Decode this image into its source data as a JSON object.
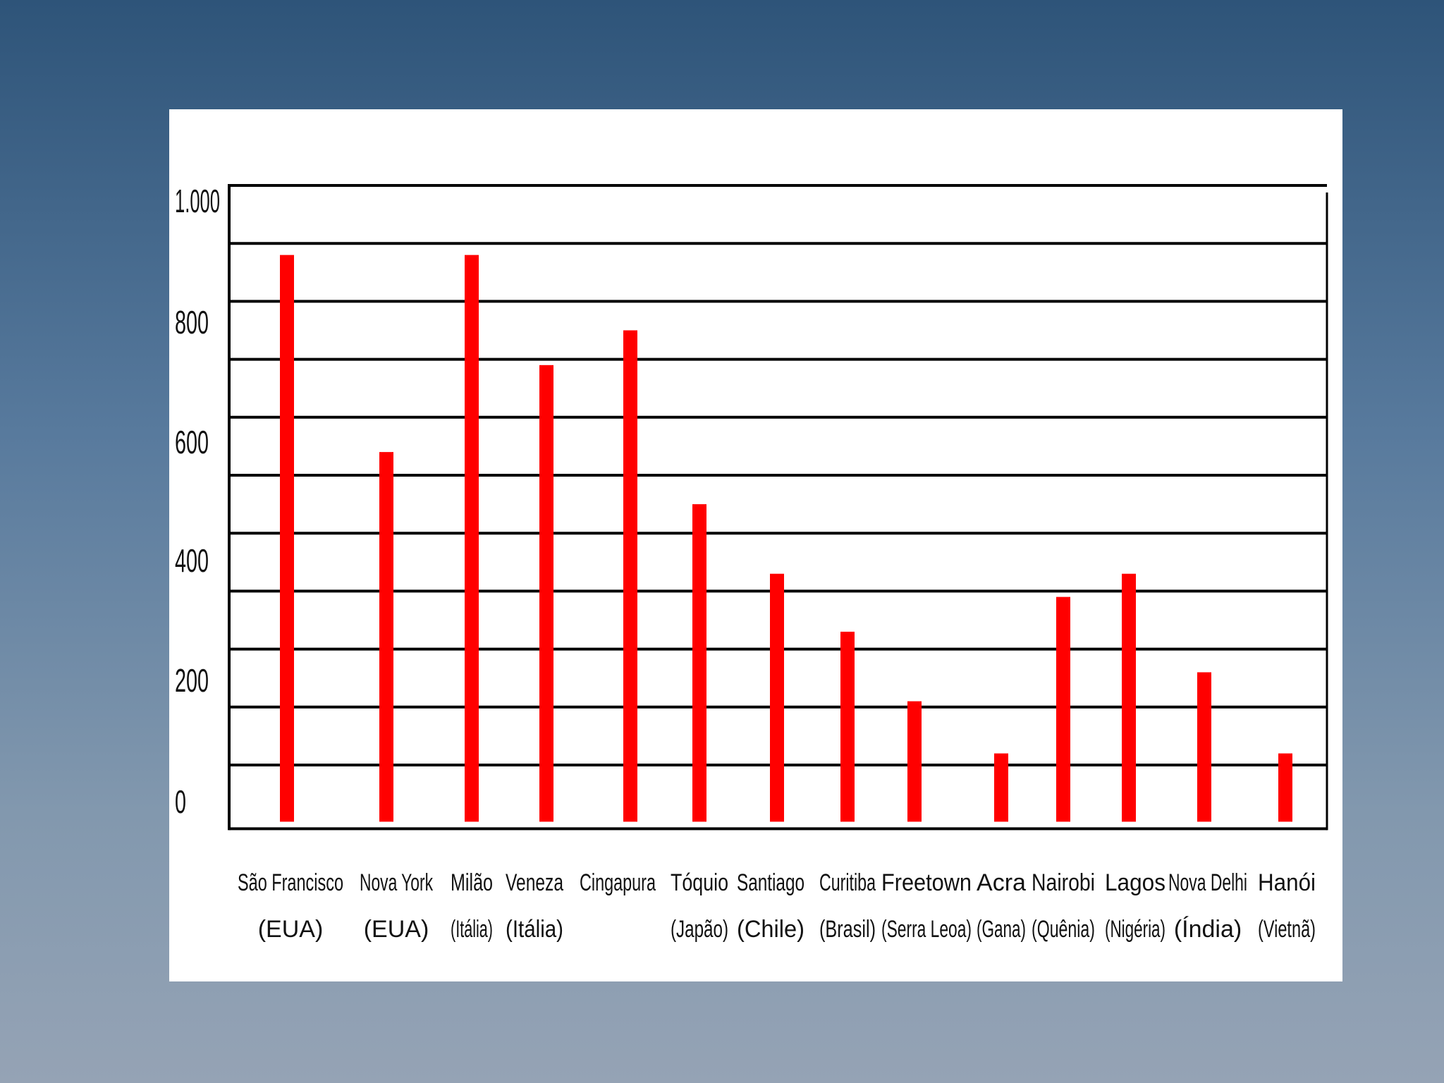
{
  "chart_data": {
    "type": "bar",
    "title": "",
    "xlabel": "",
    "ylabel": "",
    "categories": [
      [
        "São Francisco",
        "(EUA)"
      ],
      [
        "Nova York",
        "(EUA)"
      ],
      [
        "Milão",
        "(Itália)"
      ],
      [
        "Veneza",
        "(Itália)"
      ],
      [
        "Cingapura",
        ""
      ],
      [
        "Tóquio",
        "(Japão)"
      ],
      [
        "Santiago",
        "(Chile)"
      ],
      [
        "Curitiba",
        "(Brasil)"
      ],
      [
        "Freetown",
        "(Serra Leoa)"
      ],
      [
        "Acra",
        "(Gana)"
      ],
      [
        "Nairobi",
        "(Quênia)"
      ],
      [
        "Lagos",
        "(Nigéria)"
      ],
      [
        "Nova Delhi",
        "(Índia)"
      ],
      [
        "Hanói",
        "(Vietnã)"
      ]
    ],
    "values": [
      880,
      540,
      880,
      690,
      750,
      450,
      330,
      230,
      110,
      20,
      290,
      330,
      160,
      20
    ],
    "yticks": [
      {
        "value": 0,
        "label": "0"
      },
      {
        "value": 200,
        "label": "200"
      },
      {
        "value": 400,
        "label": "400"
      },
      {
        "value": 600,
        "label": "600"
      },
      {
        "value": 800,
        "label": "800"
      },
      {
        "value": 1000,
        "label": "1.000"
      }
    ],
    "ylim": [
      -110,
      1000
    ],
    "grid": true,
    "bar_color": "#ff0000",
    "grid_color": "#000000"
  }
}
